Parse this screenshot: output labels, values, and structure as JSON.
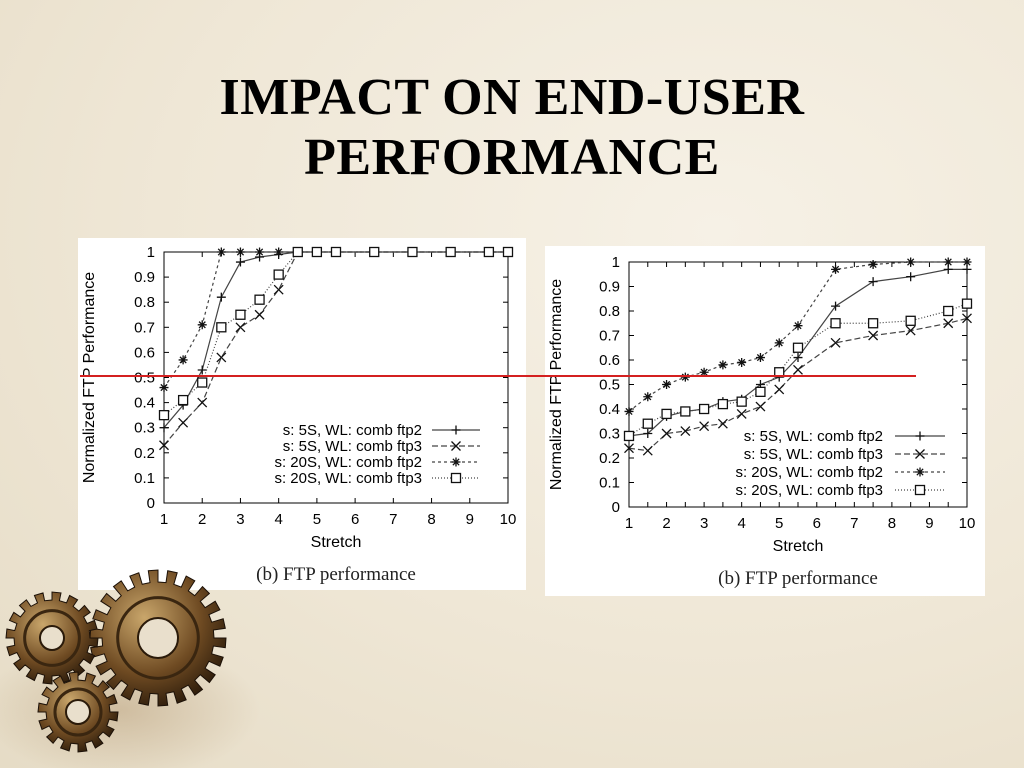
{
  "title_line1": "IMPACT ON END-USER",
  "title_line2": "PERFORMANCE",
  "colors": {
    "red_line": "#d42020",
    "axis": "#000000",
    "series": "#555555"
  },
  "chart_data": [
    {
      "type": "line",
      "caption": "(b) FTP performance",
      "xlabel": "Stretch",
      "ylabel": "Normalized FTP Performance",
      "xlim": [
        1,
        10
      ],
      "ylim": [
        0,
        1
      ],
      "xticks": [
        "1",
        "2",
        "3",
        "4",
        "5",
        "6",
        "7",
        "8",
        "9",
        "10"
      ],
      "yticks": [
        "0",
        "0.1",
        "0.2",
        "0.3",
        "0.4",
        "0.5",
        "0.6",
        "0.7",
        "0.8",
        "0.9",
        "1"
      ],
      "legend_position": "bottom-right",
      "grid": false,
      "series": [
        {
          "name": "s: 5S, WL: comb ftp2",
          "marker": "plus",
          "dash": "",
          "x": [
            1,
            1.5,
            2,
            2.5,
            3,
            3.5,
            4,
            4.5,
            5,
            5.5,
            6.5,
            7.5,
            8.5,
            9.5,
            10
          ],
          "y": [
            0.3,
            0.39,
            0.53,
            0.82,
            0.96,
            0.98,
            0.99,
            1,
            1,
            1,
            1,
            1,
            1,
            1,
            1
          ]
        },
        {
          "name": "s: 5S, WL: comb ftp3",
          "marker": "x",
          "dash": "6,3",
          "x": [
            1,
            1.5,
            2,
            2.5,
            3,
            3.5,
            4,
            4.5,
            5,
            5.5,
            6.5,
            7.5,
            8.5,
            9.5,
            10
          ],
          "y": [
            0.23,
            0.32,
            0.4,
            0.58,
            0.7,
            0.75,
            0.85,
            1,
            1,
            1,
            1,
            1,
            1,
            1,
            1
          ]
        },
        {
          "name": "s: 20S, WL: comb ftp2",
          "marker": "star",
          "dash": "3,3",
          "x": [
            1,
            1.5,
            2,
            2.5,
            3,
            3.5,
            4,
            4.5,
            5,
            5.5,
            6.5,
            7.5,
            8.5,
            9.5,
            10
          ],
          "y": [
            0.46,
            0.57,
            0.71,
            1,
            1,
            1,
            1,
            1,
            1,
            1,
            1,
            1,
            1,
            1,
            1
          ]
        },
        {
          "name": "s: 20S, WL: comb ftp3",
          "marker": "square",
          "dash": "1,2",
          "x": [
            1,
            1.5,
            2,
            2.5,
            3,
            3.5,
            4,
            4.5,
            5,
            5.5,
            6.5,
            7.5,
            8.5,
            9.5,
            10
          ],
          "y": [
            0.35,
            0.41,
            0.48,
            0.7,
            0.75,
            0.81,
            0.91,
            1,
            1,
            1,
            1,
            1,
            1,
            1,
            1
          ]
        }
      ]
    },
    {
      "type": "line",
      "caption": "(b) FTP performance",
      "xlabel": "Stretch",
      "ylabel": "Normalized FTP Performance",
      "xlim": [
        1,
        10
      ],
      "ylim": [
        0,
        1
      ],
      "xticks": [
        "1",
        "1.5",
        "2",
        "2.5",
        "3",
        "3.5",
        "4",
        "4.5",
        "5",
        "5.5",
        "6",
        "6.5",
        "7",
        "7.5",
        "8",
        "8.5",
        "9",
        "9.5",
        "10"
      ],
      "yticks": [
        "0",
        "0.1",
        "0.2",
        "0.3",
        "0.4",
        "0.5",
        "0.6",
        "0.7",
        "0.8",
        "0.9",
        "1"
      ],
      "legend_position": "bottom-right",
      "grid": false,
      "series": [
        {
          "name": "s: 5S, WL: comb ftp2",
          "marker": "plus",
          "dash": "",
          "x": [
            1,
            1.5,
            2,
            2.5,
            3,
            3.5,
            4,
            4.5,
            5,
            5.5,
            6.5,
            7.5,
            8.5,
            9.5,
            10
          ],
          "y": [
            0.29,
            0.3,
            0.37,
            0.39,
            0.4,
            0.43,
            0.44,
            0.5,
            0.53,
            0.61,
            0.82,
            0.92,
            0.94,
            0.97,
            0.97
          ]
        },
        {
          "name": "s: 5S, WL: comb ftp3",
          "marker": "x",
          "dash": "6,3",
          "x": [
            1,
            1.5,
            2,
            2.5,
            3,
            3.5,
            4,
            4.5,
            5,
            5.5,
            6.5,
            7.5,
            8.5,
            9.5,
            10
          ],
          "y": [
            0.24,
            0.23,
            0.3,
            0.31,
            0.33,
            0.34,
            0.38,
            0.41,
            0.48,
            0.56,
            0.67,
            0.7,
            0.72,
            0.75,
            0.77
          ]
        },
        {
          "name": "s: 20S, WL: comb ftp2",
          "marker": "star",
          "dash": "3,3",
          "x": [
            1,
            1.5,
            2,
            2.5,
            3,
            3.5,
            4,
            4.5,
            5,
            5.5,
            6.5,
            7.5,
            8.5,
            9.5,
            10
          ],
          "y": [
            0.39,
            0.45,
            0.5,
            0.53,
            0.55,
            0.58,
            0.59,
            0.61,
            0.67,
            0.74,
            0.97,
            0.99,
            1,
            1,
            1
          ]
        },
        {
          "name": "s: 20S, WL: comb ftp3",
          "marker": "square",
          "dash": "1,2",
          "x": [
            1,
            1.5,
            2,
            2.5,
            3,
            3.5,
            4,
            4.5,
            5,
            5.5,
            6.5,
            7.5,
            8.5,
            9.5,
            10
          ],
          "y": [
            0.29,
            0.34,
            0.38,
            0.39,
            0.4,
            0.42,
            0.43,
            0.47,
            0.55,
            0.65,
            0.75,
            0.75,
            0.76,
            0.8,
            0.83
          ]
        }
      ]
    }
  ]
}
